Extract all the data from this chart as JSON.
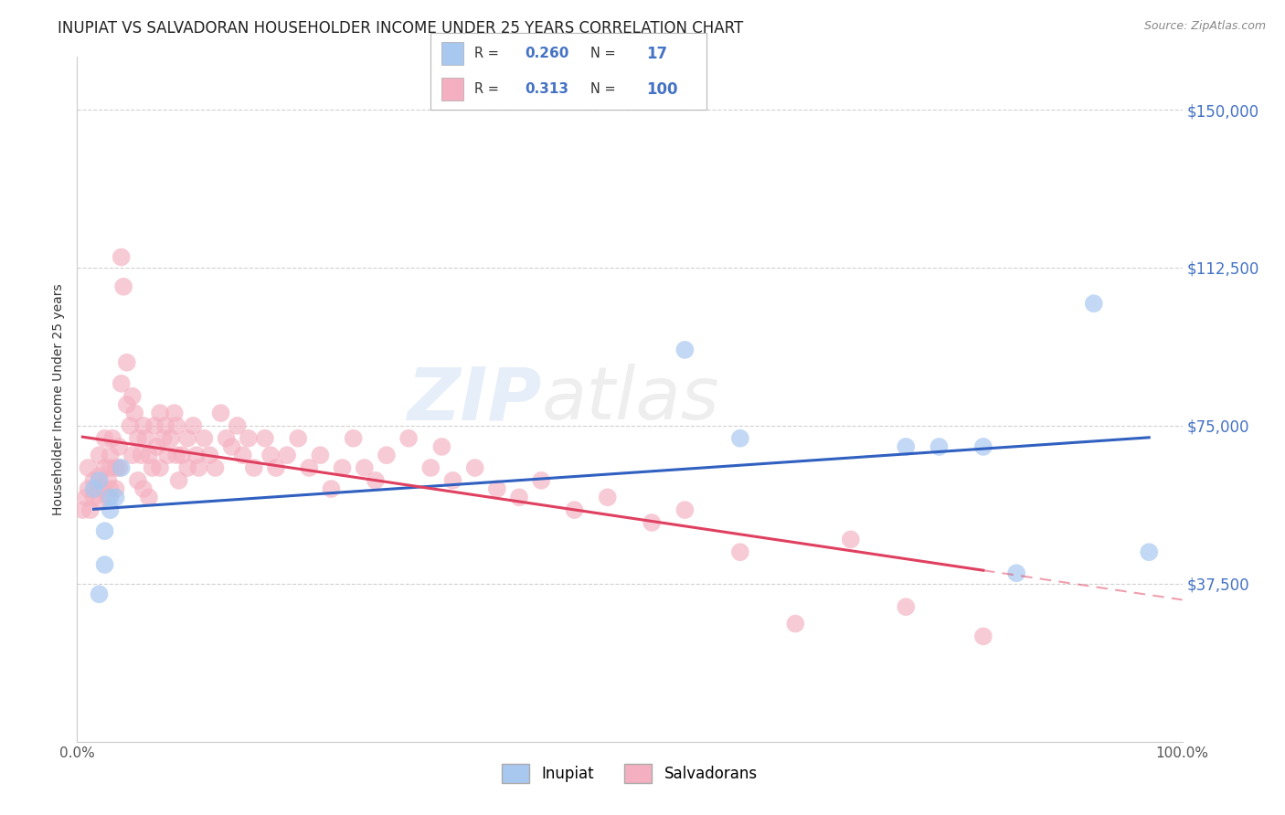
{
  "title": "INUPIAT VS SALVADORAN HOUSEHOLDER INCOME UNDER 25 YEARS CORRELATION CHART",
  "source": "Source: ZipAtlas.com",
  "ylabel": "Householder Income Under 25 years",
  "legend_label1": "Inupiat",
  "legend_label2": "Salvadorans",
  "R1": 0.26,
  "N1": 17,
  "R2": 0.313,
  "N2": 100,
  "color1": "#a8c8f0",
  "color2": "#f4b0c0",
  "line_color1": "#3060c0",
  "line_color2": "#e04060",
  "ytick_color": "#4472c4",
  "xlim": [
    0,
    1
  ],
  "ylim": [
    0,
    162500
  ],
  "yticks": [
    37500,
    75000,
    112500,
    150000
  ],
  "ytick_labels": [
    "$37,500",
    "$75,000",
    "$112,500",
    "$150,000"
  ],
  "xtick_labels": [
    "0.0%",
    "100.0%"
  ],
  "watermark_zip": "ZIP",
  "watermark_atlas": "atlas",
  "title_fontsize": 12,
  "inupiat_x": [
    0.02,
    0.03,
    0.04,
    0.03,
    0.025,
    0.035,
    0.025,
    0.02,
    0.015,
    0.55,
    0.6,
    0.75,
    0.78,
    0.82,
    0.85,
    0.92,
    0.97
  ],
  "inupiat_y": [
    62000,
    55000,
    65000,
    58000,
    42000,
    58000,
    50000,
    35000,
    60000,
    93000,
    72000,
    70000,
    70000,
    70000,
    40000,
    104000,
    45000
  ],
  "salvadoran_x": [
    0.005,
    0.008,
    0.01,
    0.01,
    0.012,
    0.015,
    0.015,
    0.018,
    0.02,
    0.02,
    0.02,
    0.022,
    0.025,
    0.025,
    0.028,
    0.028,
    0.03,
    0.03,
    0.03,
    0.032,
    0.035,
    0.035,
    0.038,
    0.038,
    0.04,
    0.04,
    0.042,
    0.045,
    0.045,
    0.048,
    0.05,
    0.05,
    0.052,
    0.055,
    0.055,
    0.058,
    0.06,
    0.06,
    0.062,
    0.065,
    0.065,
    0.068,
    0.07,
    0.072,
    0.075,
    0.075,
    0.078,
    0.08,
    0.082,
    0.085,
    0.088,
    0.09,
    0.09,
    0.092,
    0.095,
    0.1,
    0.1,
    0.105,
    0.108,
    0.11,
    0.115,
    0.12,
    0.125,
    0.13,
    0.135,
    0.14,
    0.145,
    0.15,
    0.155,
    0.16,
    0.17,
    0.175,
    0.18,
    0.19,
    0.2,
    0.21,
    0.22,
    0.23,
    0.24,
    0.25,
    0.26,
    0.27,
    0.28,
    0.3,
    0.32,
    0.33,
    0.34,
    0.36,
    0.38,
    0.4,
    0.42,
    0.45,
    0.48,
    0.52,
    0.55,
    0.6,
    0.65,
    0.7,
    0.75,
    0.82
  ],
  "salvadoran_y": [
    55000,
    58000,
    60000,
    65000,
    55000,
    62000,
    58000,
    60000,
    63000,
    57000,
    68000,
    60000,
    65000,
    72000,
    62000,
    58000,
    65000,
    68000,
    60000,
    72000,
    65000,
    60000,
    70000,
    65000,
    115000,
    85000,
    108000,
    80000,
    90000,
    75000,
    82000,
    68000,
    78000,
    72000,
    62000,
    68000,
    75000,
    60000,
    72000,
    68000,
    58000,
    65000,
    75000,
    70000,
    78000,
    65000,
    72000,
    75000,
    68000,
    72000,
    78000,
    68000,
    75000,
    62000,
    68000,
    72000,
    65000,
    75000,
    68000,
    65000,
    72000,
    68000,
    65000,
    78000,
    72000,
    70000,
    75000,
    68000,
    72000,
    65000,
    72000,
    68000,
    65000,
    68000,
    72000,
    65000,
    68000,
    60000,
    65000,
    72000,
    65000,
    62000,
    68000,
    72000,
    65000,
    70000,
    62000,
    65000,
    60000,
    58000,
    62000,
    55000,
    58000,
    52000,
    55000,
    45000,
    28000,
    48000,
    32000,
    25000
  ]
}
